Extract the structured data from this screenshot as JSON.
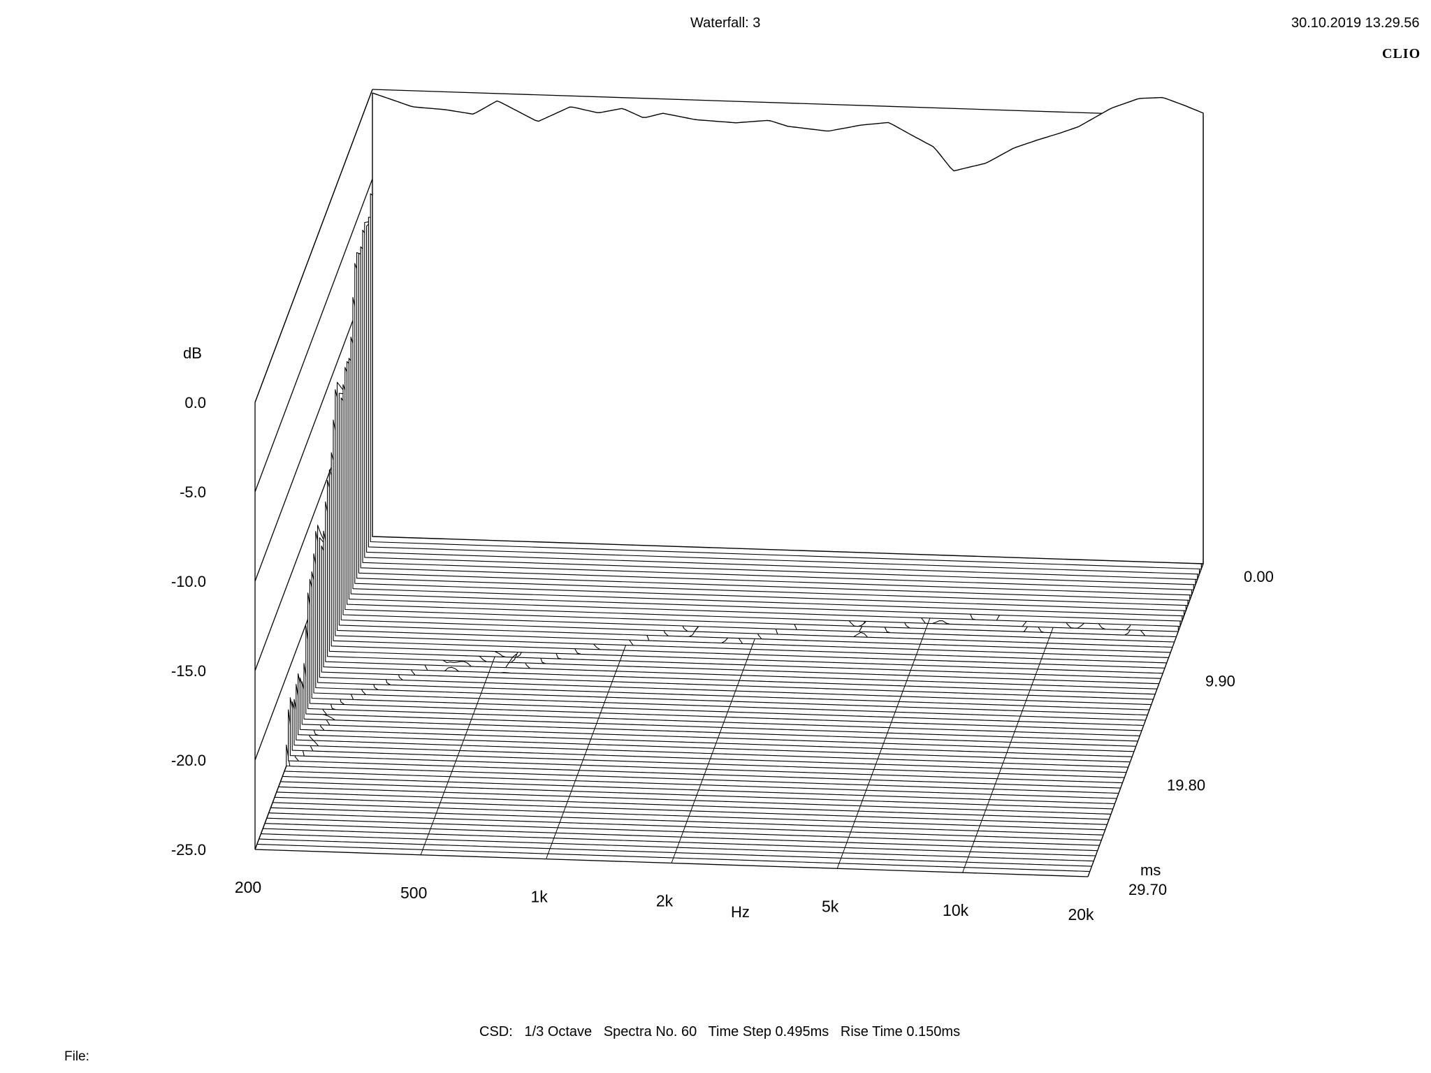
{
  "header": {
    "title": "Waterfall: 3",
    "datetime": "30.10.2019 13.29.56",
    "brand": "CLIO"
  },
  "footer": {
    "settings": "CSD:   1/3 Octave   Spectra No. 60   Time Step 0.495ms   Rise Time 0.150ms",
    "file_label": "File:"
  },
  "chart_data": {
    "type": "waterfall",
    "title": "Waterfall: 3",
    "analysis": "CSD",
    "smoothing": "1/3 Octave",
    "spectra_count": 60,
    "time_step_ms": 0.495,
    "rise_time_ms": 0.15,
    "grid": true,
    "xaxis": {
      "label": "Hz",
      "scale": "log",
      "range": [
        200,
        20000
      ],
      "tick_values": [
        200,
        500,
        1000,
        2000,
        5000,
        10000,
        20000
      ],
      "tick_labels": [
        "200",
        "500",
        "1k",
        "2k",
        "5k",
        "10k",
        "20k"
      ]
    },
    "yaxis": {
      "label": "dB",
      "range": [
        -25,
        0
      ],
      "tick_values": [
        0,
        -5,
        -10,
        -15,
        -20,
        -25
      ],
      "tick_labels": [
        "0.0",
        "-5.0",
        "-10.0",
        "-15.0",
        "-20.0",
        "-25.0"
      ]
    },
    "zaxis": {
      "label": "ms",
      "range": [
        0,
        29.7
      ],
      "tick_values": [
        0,
        9.9,
        19.8,
        29.7
      ],
      "tick_labels": [
        "0.00",
        "9.90",
        "19.80",
        "29.70"
      ]
    },
    "response_at_0ms": {
      "freq_hz": [
        200,
        250,
        300,
        350,
        400,
        500,
        600,
        700,
        800,
        900,
        1000,
        1200,
        1500,
        1800,
        2000,
        2500,
        3000,
        3500,
        4000,
        4500,
        5000,
        6000,
        7000,
        8000,
        9000,
        10000,
        12000,
        14000,
        16000,
        18000,
        20000
      ],
      "level_db": [
        -0.2,
        -0.9,
        -1.0,
        -1.2,
        -0.4,
        -1.5,
        -0.6,
        -0.9,
        -0.6,
        -1.1,
        -0.8,
        -1.1,
        -1.2,
        -1.0,
        -1.3,
        -1.5,
        -1.1,
        -0.9,
        -1.6,
        -2.2,
        -3.5,
        -3.0,
        -2.1,
        -1.6,
        -1.2,
        -0.8,
        0.3,
        0.9,
        1.0,
        0.6,
        0.2
      ]
    }
  }
}
